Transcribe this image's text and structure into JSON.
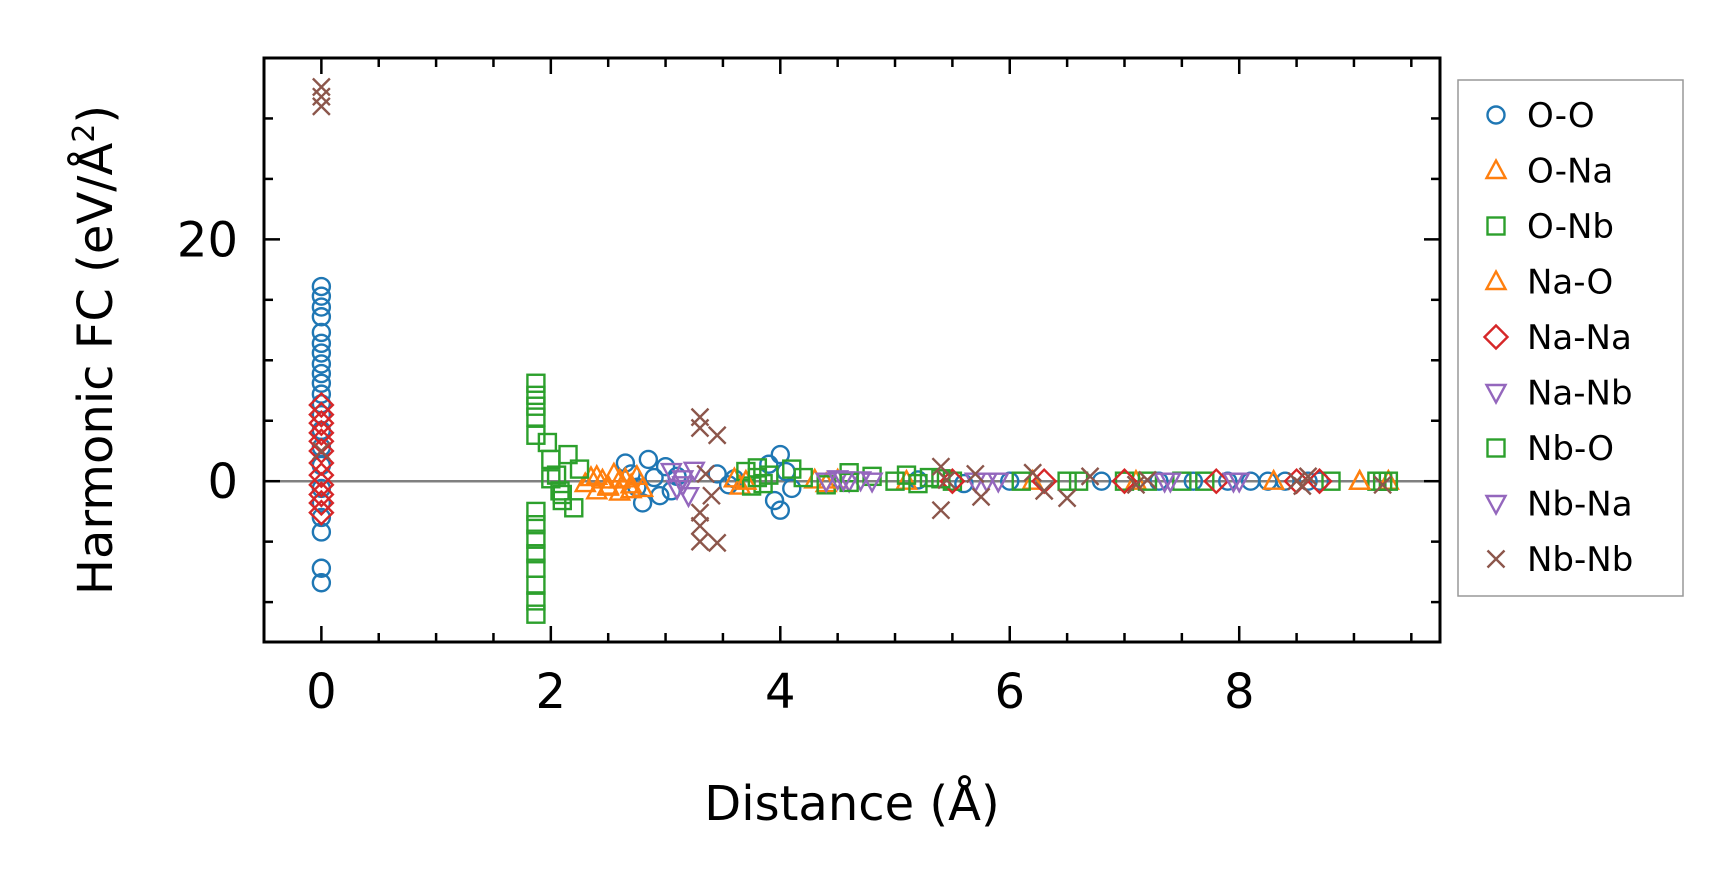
{
  "chart_data": {
    "type": "scatter",
    "xlabel": "Distance (Å)",
    "ylabel": {
      "main": "Harmonic FC (eV/Å",
      "sup": "2",
      "close": ")"
    },
    "xlim": [
      -0.5,
      9.75
    ],
    "ylim": [
      -13.3,
      35
    ],
    "xticks": [
      0,
      2,
      4,
      6,
      8
    ],
    "xtick_labels": [
      "0",
      "2",
      "4",
      "6",
      "8"
    ],
    "yticks": [
      0,
      20
    ],
    "ytick_labels": [
      "0",
      "20"
    ],
    "x_minor_step": 0.5,
    "y_minor_step": 5,
    "zero_line": true,
    "grid": false,
    "legend_position": "outside right",
    "series": [
      {
        "name": "O-O",
        "marker": "circle",
        "color": "#1f77b4",
        "points": [
          [
            0,
            16.1
          ],
          [
            0,
            15.3
          ],
          [
            0,
            14.4
          ],
          [
            0,
            13.6
          ],
          [
            0,
            12.3
          ],
          [
            0,
            11.4
          ],
          [
            0,
            10.6
          ],
          [
            0,
            9.7
          ],
          [
            0,
            8.9
          ],
          [
            0,
            8.1
          ],
          [
            0,
            7.2
          ],
          [
            0,
            6.4
          ],
          [
            0,
            5.5
          ],
          [
            0,
            4.2
          ],
          [
            0,
            2.8
          ],
          [
            0,
            1.3
          ],
          [
            0,
            -0.6
          ],
          [
            0,
            -1.8
          ],
          [
            0,
            -3.0
          ],
          [
            0,
            -4.2
          ],
          [
            0,
            -7.2
          ],
          [
            0,
            -8.4
          ],
          [
            2.65,
            1.5
          ],
          [
            2.7,
            0.6
          ],
          [
            2.75,
            -0.5
          ],
          [
            2.8,
            -1.8
          ],
          [
            2.85,
            1.8
          ],
          [
            2.9,
            0.3
          ],
          [
            2.95,
            -1.2
          ],
          [
            3.0,
            1.2
          ],
          [
            3.05,
            -0.8
          ],
          [
            3.1,
            0.4
          ],
          [
            3.45,
            0.6
          ],
          [
            3.55,
            -0.3
          ],
          [
            3.6,
            0.2
          ],
          [
            3.9,
            1.4
          ],
          [
            3.95,
            -1.6
          ],
          [
            4.0,
            2.2
          ],
          [
            4.0,
            -2.4
          ],
          [
            4.05,
            0.8
          ],
          [
            4.1,
            -0.6
          ],
          [
            5.2,
            0.1
          ],
          [
            5.6,
            -0.2
          ],
          [
            6.0,
            0.0
          ],
          [
            6.8,
            0.0
          ],
          [
            7.3,
            0.0
          ],
          [
            7.6,
            0.0
          ],
          [
            7.9,
            0.0
          ],
          [
            8.1,
            0.0
          ],
          [
            8.25,
            0.0
          ],
          [
            8.4,
            0.0
          ],
          [
            8.6,
            0.0
          ],
          [
            8.7,
            0.0
          ]
        ]
      },
      {
        "name": "O-Na",
        "marker": "triangle-up",
        "color": "#ff7f0e",
        "points": [
          [
            2.3,
            -0.2
          ],
          [
            2.35,
            0.3
          ],
          [
            2.4,
            -0.8
          ],
          [
            2.45,
            0.1
          ],
          [
            2.5,
            -0.4
          ],
          [
            2.55,
            0.6
          ],
          [
            2.6,
            -0.9
          ],
          [
            2.65,
            0.2
          ],
          [
            2.7,
            -0.3
          ],
          [
            2.75,
            0.4
          ],
          [
            2.8,
            -0.6
          ],
          [
            3.6,
            0.2
          ],
          [
            3.65,
            -0.4
          ],
          [
            4.3,
            0.1
          ],
          [
            4.4,
            -0.2
          ],
          [
            5.1,
            0.0
          ],
          [
            6.2,
            0.0
          ],
          [
            7.1,
            0.0
          ],
          [
            8.3,
            0.0
          ],
          [
            9.05,
            0.0
          ],
          [
            9.3,
            0.0
          ]
        ]
      },
      {
        "name": "O-Nb",
        "marker": "square",
        "color": "#2ca02c",
        "points": [
          [
            1.87,
            8.1
          ],
          [
            1.87,
            7.1
          ],
          [
            1.87,
            6.2
          ],
          [
            1.87,
            5.3
          ],
          [
            1.87,
            3.8
          ],
          [
            1.87,
            -2.5
          ],
          [
            1.87,
            -3.6
          ],
          [
            1.87,
            -4.8
          ],
          [
            1.87,
            -6.0
          ],
          [
            1.87,
            -7.2
          ],
          [
            1.87,
            -8.6
          ],
          [
            1.87,
            -9.9
          ],
          [
            1.87,
            -11.0
          ],
          [
            1.97,
            3.2
          ],
          [
            2.0,
            1.8
          ],
          [
            2.05,
            0.5
          ],
          [
            2.08,
            -0.8
          ],
          [
            2.1,
            -1.6
          ],
          [
            2.15,
            2.2
          ],
          [
            2.2,
            -2.2
          ],
          [
            2.25,
            1.0
          ],
          [
            3.7,
            0.8
          ],
          [
            3.75,
            -0.4
          ],
          [
            3.8,
            1.1
          ],
          [
            3.85,
            -0.2
          ],
          [
            3.9,
            0.5
          ],
          [
            4.1,
            1.0
          ],
          [
            4.2,
            0.3
          ],
          [
            4.4,
            -0.3
          ],
          [
            4.6,
            0.7
          ],
          [
            4.8,
            0.4
          ],
          [
            5.0,
            0.0
          ],
          [
            5.1,
            0.5
          ],
          [
            5.2,
            -0.2
          ],
          [
            5.3,
            0.3
          ],
          [
            5.5,
            0.0
          ],
          [
            6.1,
            0.0
          ],
          [
            6.6,
            0.0
          ],
          [
            7.0,
            0.0
          ],
          [
            7.5,
            0.0
          ],
          [
            7.7,
            0.0
          ],
          [
            8.8,
            0.0
          ],
          [
            9.2,
            0.0
          ],
          [
            9.3,
            0.0
          ]
        ]
      },
      {
        "name": "Na-O",
        "marker": "triangle-up",
        "color": "#ff7f0e",
        "points": [
          [
            2.4,
            0.4
          ],
          [
            2.5,
            -0.5
          ],
          [
            2.6,
            0.1
          ],
          [
            2.7,
            -0.7
          ],
          [
            3.7,
            0.0
          ],
          [
            4.5,
            0.1
          ],
          [
            9.05,
            0.0
          ]
        ]
      },
      {
        "name": "Na-Na",
        "marker": "diamond",
        "color": "#d62728",
        "points": [
          [
            0,
            6.3
          ],
          [
            0,
            5.5
          ],
          [
            0,
            4.8
          ],
          [
            0,
            4.0
          ],
          [
            0,
            3.3
          ],
          [
            0,
            2.5
          ],
          [
            0,
            1.5
          ],
          [
            0,
            0.5
          ],
          [
            0,
            -0.3
          ],
          [
            0,
            -1.1
          ],
          [
            0,
            -1.8
          ],
          [
            0,
            -2.6
          ],
          [
            5.5,
            0.0
          ],
          [
            6.3,
            0.0
          ],
          [
            7.0,
            0.0
          ],
          [
            7.8,
            0.0
          ],
          [
            8.5,
            0.0
          ],
          [
            8.7,
            0.0
          ]
        ]
      },
      {
        "name": "Na-Nb",
        "marker": "triangle-down",
        "color": "#9467bd",
        "points": [
          [
            3.05,
            0.8
          ],
          [
            3.1,
            -0.6
          ],
          [
            3.15,
            0.2
          ],
          [
            3.2,
            -1.2
          ],
          [
            3.25,
            0.9
          ],
          [
            4.4,
            0.0
          ],
          [
            4.5,
            0.2
          ],
          [
            4.6,
            0.0
          ],
          [
            4.7,
            0.1
          ],
          [
            4.8,
            0.0
          ],
          [
            5.7,
            0.0
          ],
          [
            5.9,
            0.0
          ],
          [
            7.4,
            0.0
          ],
          [
            7.95,
            0.0
          ]
        ]
      },
      {
        "name": "Nb-O",
        "marker": "square",
        "color": "#2ca02c",
        "points": [
          [
            2.0,
            0.2
          ],
          [
            2.1,
            -1.1
          ],
          [
            3.8,
            0.3
          ],
          [
            4.6,
            -0.1
          ],
          [
            5.4,
            0.2
          ],
          [
            6.5,
            0.0
          ],
          [
            7.2,
            0.0
          ],
          [
            9.25,
            0.0
          ]
        ]
      },
      {
        "name": "Nb-Na",
        "marker": "triangle-down",
        "color": "#9467bd",
        "points": [
          [
            3.15,
            -0.3
          ],
          [
            4.55,
            0.1
          ],
          [
            5.8,
            0.0
          ],
          [
            7.35,
            0.0
          ],
          [
            8.0,
            0.0
          ]
        ]
      },
      {
        "name": "Nb-Nb",
        "marker": "x",
        "color": "#8c564b",
        "points": [
          [
            0,
            32.6
          ],
          [
            0,
            31.8
          ],
          [
            0,
            31.0
          ],
          [
            0,
            2.5
          ],
          [
            3.3,
            5.3
          ],
          [
            3.3,
            4.4
          ],
          [
            3.3,
            -2.6
          ],
          [
            3.3,
            -3.7
          ],
          [
            3.3,
            -5.0
          ],
          [
            3.35,
            0.6
          ],
          [
            3.4,
            -1.2
          ],
          [
            3.45,
            3.8
          ],
          [
            3.45,
            -5.1
          ],
          [
            5.4,
            1.2
          ],
          [
            5.4,
            -2.4
          ],
          [
            5.45,
            0.1
          ],
          [
            5.7,
            0.6
          ],
          [
            5.75,
            -1.3
          ],
          [
            6.2,
            0.7
          ],
          [
            6.3,
            -0.8
          ],
          [
            6.5,
            -1.4
          ],
          [
            6.7,
            0.4
          ],
          [
            7.1,
            -0.3
          ],
          [
            7.2,
            0.1
          ],
          [
            8.5,
            0.0
          ],
          [
            8.55,
            -0.4
          ],
          [
            8.6,
            0.4
          ],
          [
            9.25,
            -0.3
          ]
        ]
      }
    ]
  }
}
